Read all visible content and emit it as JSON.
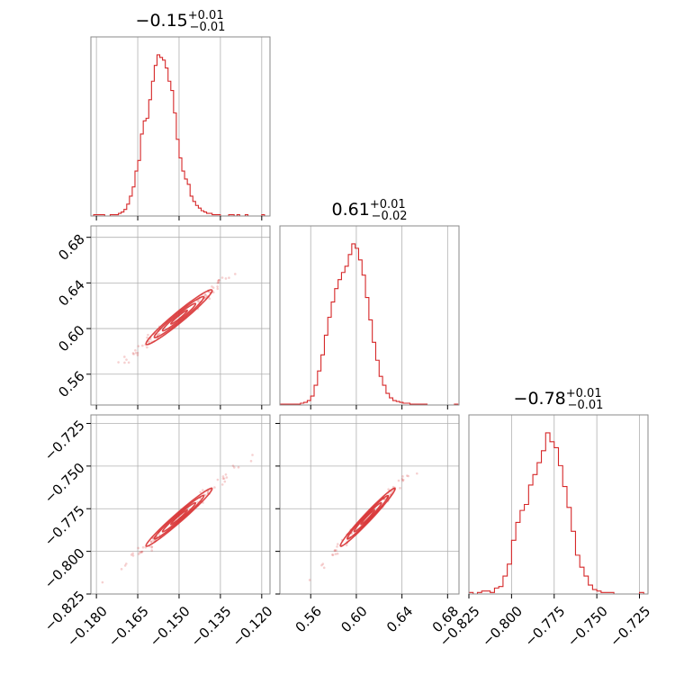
{
  "chart_data": {
    "type": "corner",
    "color": "#d62728",
    "parameters": [
      {
        "median": -0.15,
        "range": [
          -0.182,
          -0.117
        ],
        "ticks": [
          -0.18,
          -0.165,
          -0.15,
          -0.135,
          -0.12
        ],
        "tick_labels": [
          "−0.180",
          "−0.165",
          "−0.150",
          "−0.135",
          "−0.120"
        ],
        "title": {
          "main": "−0.15",
          "sup": "+0.01",
          "sub": "−0.01"
        }
      },
      {
        "median": 0.61,
        "range": [
          0.533,
          0.69
        ],
        "ticks": [
          0.56,
          0.6,
          0.64,
          0.68
        ],
        "tick_labels": [
          "0.56",
          "0.60",
          "0.64",
          "0.68"
        ],
        "title": {
          "main": "0.61",
          "sup": "+0.01",
          "sub": "−0.02"
        }
      },
      {
        "median": -0.78,
        "range": [
          -0.825,
          -0.72
        ],
        "ticks": [
          -0.825,
          -0.8,
          -0.775,
          -0.75,
          -0.725
        ],
        "tick_labels": [
          "−0.825",
          "−0.800",
          "−0.775",
          "−0.750",
          "−0.725"
        ],
        "title": {
          "main": "−0.78",
          "sup": "+0.01",
          "sub": "−0.01"
        }
      }
    ],
    "histograms": [
      {
        "param": 0,
        "bin_width": 0.001,
        "start": -0.182,
        "counts": [
          0,
          1,
          1,
          1,
          1,
          0,
          0,
          1,
          1,
          1,
          2,
          3,
          5,
          9,
          15,
          22,
          34,
          42,
          62,
          72,
          74,
          88,
          102,
          114,
          122,
          120,
          118,
          112,
          102,
          95,
          78,
          58,
          44,
          34,
          28,
          24,
          15,
          11,
          8,
          6,
          4,
          3,
          2,
          2,
          1,
          1,
          1,
          0,
          0,
          0,
          1,
          1,
          0,
          1,
          0,
          0,
          1,
          0,
          0,
          0,
          0,
          0,
          1,
          0,
          0
        ]
      },
      {
        "param": 1,
        "bin_width": 0.003,
        "start": 0.533,
        "counts": [
          1,
          1,
          1,
          1,
          1,
          1,
          2,
          3,
          5,
          10,
          22,
          38,
          56,
          78,
          98,
          115,
          130,
          140,
          148,
          155,
          168,
          180,
          175,
          162,
          145,
          120,
          95,
          70,
          50,
          32,
          22,
          13,
          8,
          5,
          4,
          3,
          2,
          2,
          1,
          1,
          1,
          1,
          1,
          0,
          0,
          0,
          0,
          0,
          0,
          0,
          0,
          1,
          0
        ]
      },
      {
        "param": 2,
        "bin_width": 0.0025,
        "start": -0.825,
        "counts": [
          1,
          0,
          1,
          2,
          2,
          1,
          4,
          5,
          12,
          20,
          36,
          48,
          56,
          60,
          73,
          80,
          88,
          96,
          108,
          102,
          98,
          86,
          72,
          58,
          42,
          26,
          18,
          12,
          6,
          3,
          2,
          1,
          1,
          1,
          0,
          0,
          0,
          0,
          0,
          0,
          1,
          0,
          0
        ]
      }
    ],
    "correlations": [
      {
        "x_param": 0,
        "y_param": 1,
        "rho": 0.97,
        "sigma_x": 0.006,
        "sigma_y": 0.012
      },
      {
        "x_param": 0,
        "y_param": 2,
        "rho": 0.98,
        "sigma_x": 0.006,
        "sigma_y": 0.0085
      },
      {
        "x_param": 1,
        "y_param": 2,
        "rho": 0.98,
        "sigma_x": 0.012,
        "sigma_y": 0.0085
      }
    ],
    "contour_levels_sigma": [
      0.5,
      1.0,
      1.5,
      2.0
    ],
    "grid": true,
    "legend": "none"
  }
}
